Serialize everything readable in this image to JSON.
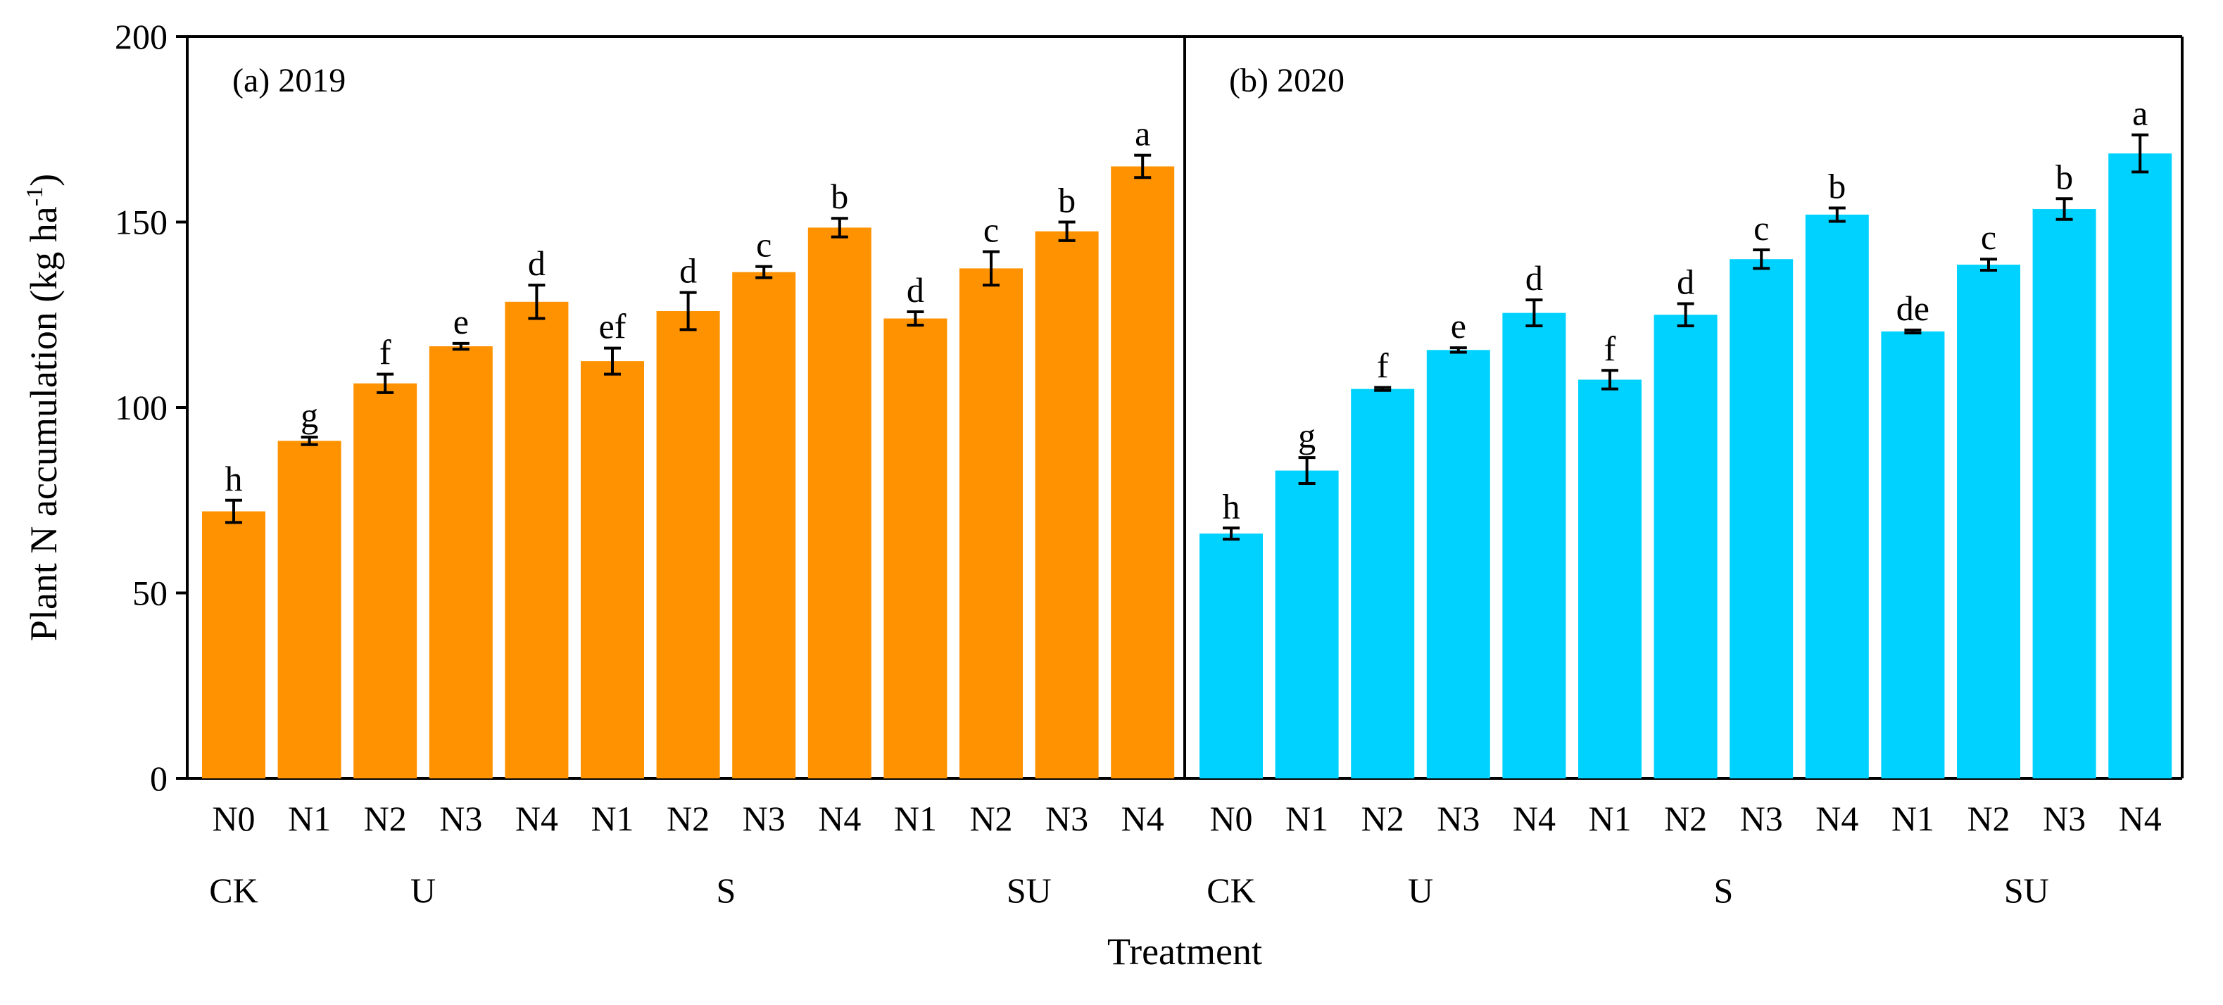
{
  "chart_data": {
    "type": "bar",
    "ylabel": "Plant N accumulation (kg ha",
    "ylabel_sup": "-1",
    "ylabel_end": ")",
    "xlabel": "Treatment",
    "ylim": [
      0,
      200
    ],
    "yticks": [
      "0",
      "50",
      "100",
      "150",
      "200"
    ],
    "groups": [
      {
        "label": "CK",
        "levels": [
          "N0"
        ]
      },
      {
        "label": "U",
        "levels": [
          "N1",
          "N2",
          "N3",
          "N4"
        ]
      },
      {
        "label": "S",
        "levels": [
          "N1",
          "N2",
          "N3",
          "N4"
        ]
      },
      {
        "label": "SU",
        "levels": [
          "N1",
          "N2",
          "N3",
          "N4"
        ]
      }
    ],
    "panels": [
      {
        "title": "(a) 2019",
        "color": "#FF9200",
        "values": [
          72,
          91,
          106.5,
          116.5,
          128.5,
          112.5,
          126,
          136.5,
          148.5,
          124,
          137.5,
          147.5,
          165
        ],
        "errors": [
          3,
          1,
          2.5,
          0.8,
          4.5,
          3.5,
          5,
          1.5,
          2.5,
          1.8,
          4.5,
          2.5,
          3
        ],
        "letters": [
          "h",
          "g",
          "f",
          "e",
          "d",
          "ef",
          "d",
          "c",
          "b",
          "d",
          "c",
          "b",
          "a"
        ]
      },
      {
        "title": "(b) 2020",
        "color": "#00D2FF",
        "values": [
          66,
          83,
          105,
          115.5,
          125.5,
          107.5,
          125,
          140,
          152,
          120.5,
          138.5,
          153.5,
          168.5
        ],
        "errors": [
          1.5,
          3.5,
          0.4,
          0.6,
          3.5,
          2.5,
          3,
          2.5,
          1.8,
          0.4,
          1.5,
          2.8,
          5
        ],
        "letters": [
          "h",
          "g",
          "f",
          "e",
          "d",
          "f",
          "d",
          "c",
          "b",
          "de",
          "c",
          "b",
          "a"
        ]
      }
    ]
  }
}
